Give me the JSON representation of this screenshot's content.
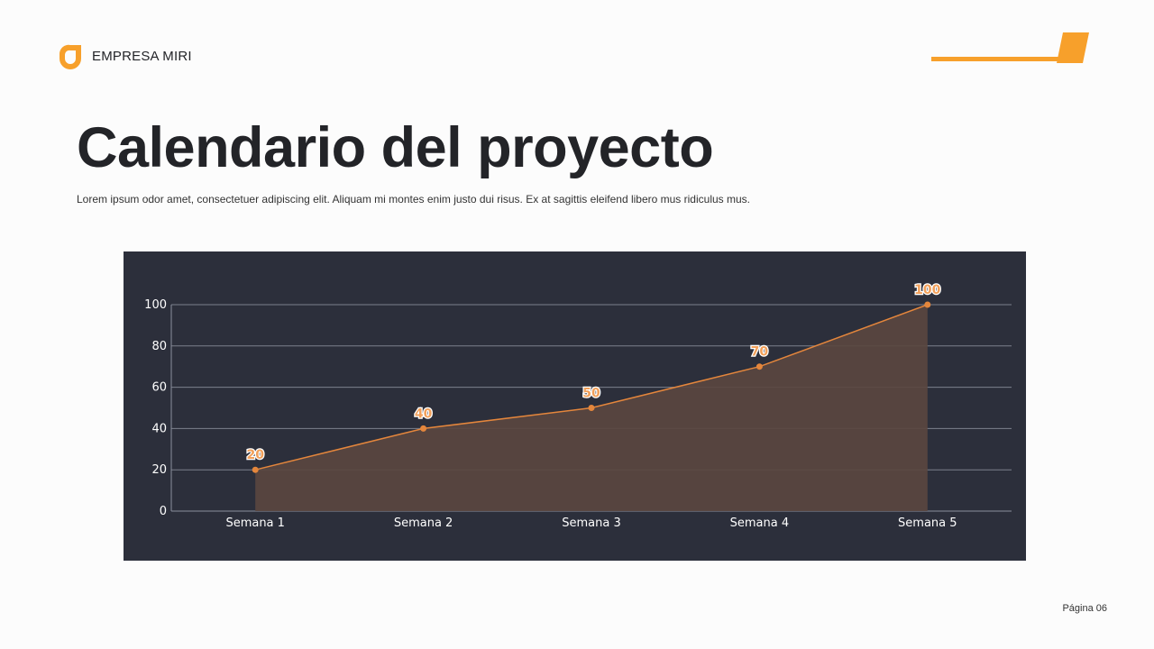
{
  "brand": {
    "name": "EMPRESA MIRI",
    "logo_icon": "o-shape-logo-icon",
    "accent": "#f7a02b"
  },
  "slide": {
    "title": "Calendario del proyecto",
    "subtitle": "Lorem ipsum odor amet, consectetuer adipiscing elit. Aliquam mi montes enim justo dui risus. Ex at sagittis eleifend libero mus ridiculus mus."
  },
  "footer": {
    "page": "Página 06"
  },
  "chart_data": {
    "type": "area",
    "categories": [
      "Semana 1",
      "Semana 2",
      "Semana 3",
      "Semana 4",
      "Semana 5"
    ],
    "values": [
      20,
      40,
      50,
      70,
      100
    ],
    "data_labels": [
      "20",
      "40",
      "50",
      "70",
      "100"
    ],
    "yticks": [
      "0",
      "20",
      "40",
      "60",
      "80",
      "100"
    ],
    "ylim": [
      0,
      100
    ],
    "grid": true,
    "colors": {
      "line": "#e4863c",
      "fill": "#5a4740",
      "background": "#2c2f3b",
      "label_fill": "#f2a05a"
    }
  }
}
